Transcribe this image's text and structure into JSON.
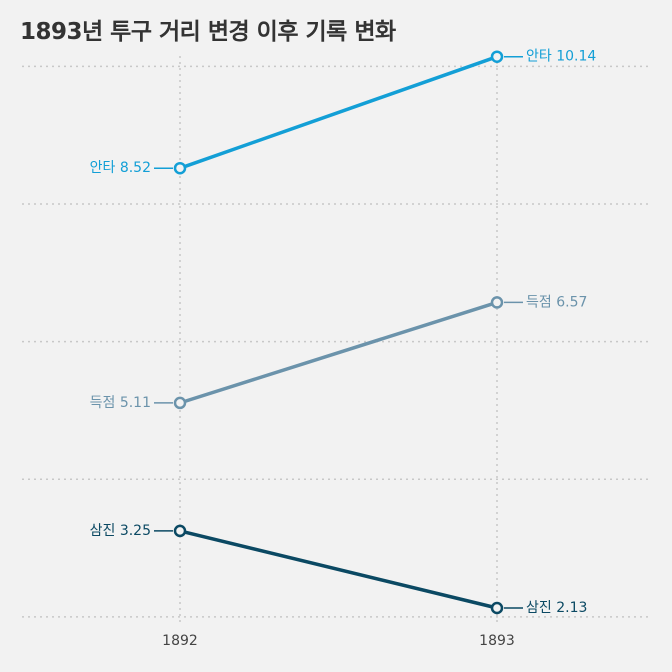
{
  "title": "1893년 투구 거리 변경 이후 기록 변화",
  "chart_data": {
    "type": "line",
    "categories": [
      "1892",
      "1893"
    ],
    "series": [
      {
        "name": "안타",
        "values": [
          8.52,
          10.14
        ],
        "labels": [
          "안타 8.52",
          "안타 10.14"
        ],
        "color": "#139fd6"
      },
      {
        "name": "득점",
        "values": [
          5.11,
          6.57
        ],
        "labels": [
          "득점 5.11",
          "득점 6.57"
        ],
        "color": "#6b93ab"
      },
      {
        "name": "삼진",
        "values": [
          3.25,
          2.13
        ],
        "labels": [
          "삼진 3.25",
          "삼진 2.13"
        ],
        "color": "#0b4963"
      }
    ],
    "ylim": [
      1.97,
      10.47
    ],
    "yticks": [
      2,
      4,
      6,
      8,
      10
    ],
    "grid": true,
    "title": "1893년 투구 거리 변경 이후 기록 변화",
    "xlabel": "",
    "ylabel": ""
  }
}
